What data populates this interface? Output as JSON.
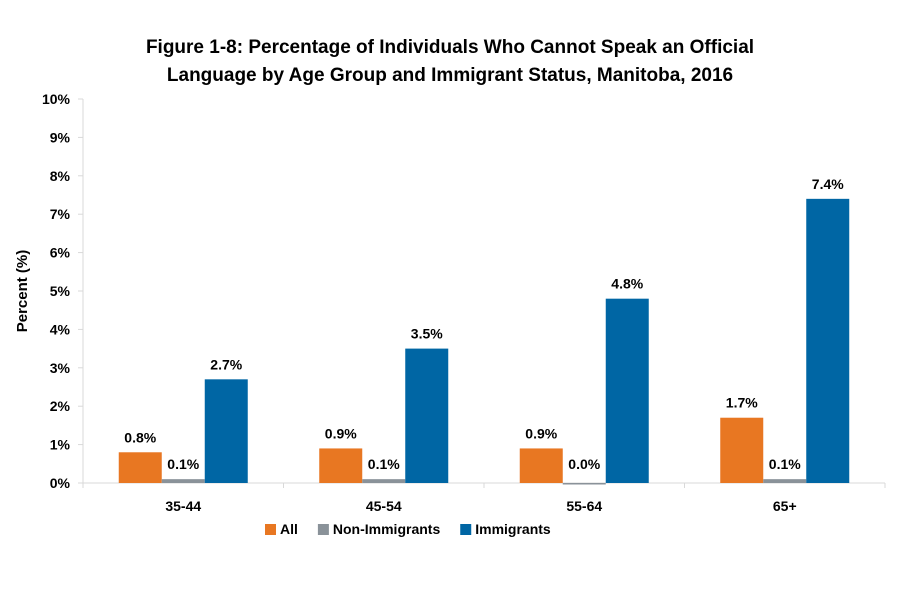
{
  "chart_data": {
    "type": "bar",
    "title_lines": [
      "Figure 1-8: Percentage of Individuals Who Cannot Speak an Official",
      "Language by Age Group and Immigrant Status, Manitoba, 2016"
    ],
    "xlabel": "",
    "ylabel": "Percent (%)",
    "ylim": [
      0,
      10
    ],
    "yticks": [
      "0%",
      "1%",
      "2%",
      "3%",
      "4%",
      "5%",
      "6%",
      "7%",
      "8%",
      "9%",
      "10%"
    ],
    "categories": [
      "35-44",
      "45-54",
      "55-64",
      "65+"
    ],
    "series": [
      {
        "name": "All",
        "color": "#E87722",
        "values": [
          0.8,
          0.9,
          0.9,
          1.7
        ],
        "labels": [
          "0.8%",
          "0.9%",
          "0.9%",
          "1.7%"
        ]
      },
      {
        "name": "Non-Immigrants",
        "color": "#8A9299",
        "values": [
          0.1,
          0.1,
          0.0,
          0.1
        ],
        "labels": [
          "0.1%",
          "0.1%",
          "0.0%",
          "0.1%"
        ]
      },
      {
        "name": "Immigrants",
        "color": "#0066A4",
        "values": [
          2.7,
          3.5,
          4.8,
          7.4
        ],
        "labels": [
          "2.7%",
          "3.5%",
          "4.8%",
          "7.4%"
        ]
      }
    ],
    "grid": false,
    "legend_placement": "bottom"
  }
}
